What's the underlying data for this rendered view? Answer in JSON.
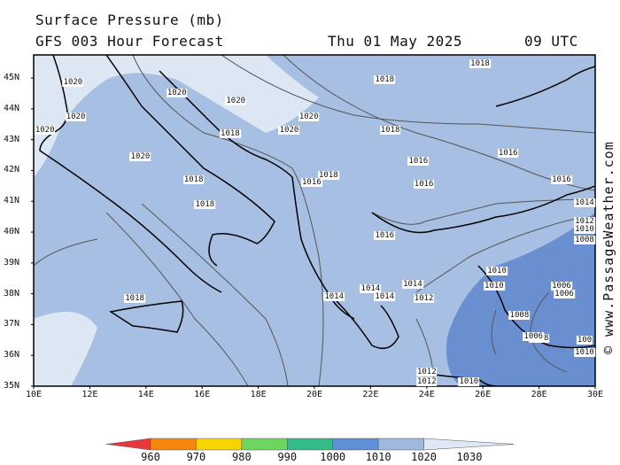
{
  "header": {
    "title": "Surface Pressure (mb)",
    "subtitle": "GFS 003 Hour Forecast",
    "date": "Thu 01 May 2025",
    "time": "09 UTC"
  },
  "credit": "© www.PassageWeather.com",
  "axes": {
    "lat_labels": [
      "45N",
      "44N",
      "43N",
      "42N",
      "41N",
      "40N",
      "39N",
      "38N",
      "37N",
      "36N",
      "35N"
    ],
    "lon_labels": [
      "10E",
      "12E",
      "14E",
      "16E",
      "18E",
      "20E",
      "22E",
      "24E",
      "26E",
      "28E",
      "30E"
    ]
  },
  "isobar_labels": [
    {
      "text": "1020",
      "lon": 11.4,
      "lat": 44.85
    },
    {
      "text": "1020",
      "lon": 15.1,
      "lat": 44.5
    },
    {
      "text": "1020",
      "lon": 17.2,
      "lat": 44.25
    },
    {
      "text": "1020",
      "lon": 11.5,
      "lat": 43.75
    },
    {
      "text": "1020",
      "lon": 19.8,
      "lat": 43.75
    },
    {
      "text": "1020",
      "lon": 10.4,
      "lat": 43.3
    },
    {
      "text": "1020",
      "lon": 19.1,
      "lat": 43.3
    },
    {
      "text": "1020",
      "lon": 13.8,
      "lat": 42.45
    },
    {
      "text": "1018",
      "lon": 22.5,
      "lat": 44.95
    },
    {
      "text": "1018",
      "lon": 17.0,
      "lat": 43.2
    },
    {
      "text": "1018",
      "lon": 22.7,
      "lat": 43.3
    },
    {
      "text": "1018",
      "lon": 15.7,
      "lat": 41.7
    },
    {
      "text": "1018",
      "lon": 16.1,
      "lat": 40.9
    },
    {
      "text": "1018",
      "lon": 20.5,
      "lat": 41.85
    },
    {
      "text": "1018",
      "lon": 13.6,
      "lat": 37.85
    },
    {
      "text": "1018",
      "lon": 25.9,
      "lat": 45.45
    },
    {
      "text": "1016",
      "lon": 23.7,
      "lat": 42.3
    },
    {
      "text": "1016",
      "lon": 26.9,
      "lat": 42.55
    },
    {
      "text": "1016",
      "lon": 23.9,
      "lat": 41.55
    },
    {
      "text": "1016",
      "lon": 19.9,
      "lat": 41.6
    },
    {
      "text": "1016",
      "lon": 22.5,
      "lat": 39.9
    },
    {
      "text": "1016",
      "lon": 28.8,
      "lat": 41.7
    },
    {
      "text": "1014",
      "lon": 29.9,
      "lat": 40.95
    },
    {
      "text": "1014",
      "lon": 23.5,
      "lat": 38.3
    },
    {
      "text": "1014",
      "lon": 22.0,
      "lat": 38.15
    },
    {
      "text": "1014",
      "lon": 20.7,
      "lat": 37.9
    },
    {
      "text": "1014",
      "lon": 22.5,
      "lat": 37.9
    },
    {
      "text": "1012",
      "lon": 29.9,
      "lat": 40.35
    },
    {
      "text": "1012",
      "lon": 23.9,
      "lat": 37.85
    },
    {
      "text": "1012",
      "lon": 24.0,
      "lat": 35.45
    },
    {
      "text": "1012",
      "lon": 24.0,
      "lat": 35.05
    },
    {
      "text": "1010",
      "lon": 29.9,
      "lat": 40.1
    },
    {
      "text": "1010",
      "lon": 26.5,
      "lat": 38.75
    },
    {
      "text": "1010",
      "lon": 26.4,
      "lat": 38.25
    },
    {
      "text": "1010",
      "lon": 29.9,
      "lat": 36.1
    },
    {
      "text": "1010",
      "lon": 25.5,
      "lat": 35.15
    },
    {
      "text": "1008",
      "lon": 30.0,
      "lat": 39.75
    },
    {
      "text": "1008",
      "lon": 27.3,
      "lat": 37.3
    },
    {
      "text": "1008",
      "lon": 28.0,
      "lat": 36.55
    },
    {
      "text": "1006",
      "lon": 28.8,
      "lat": 38.25
    },
    {
      "text": "1006",
      "lon": 28.9,
      "lat": 38.0
    },
    {
      "text": "1006",
      "lon": 27.8,
      "lat": 36.6
    },
    {
      "text": "100",
      "lon": 30.1,
      "lat": 36.5
    }
  ],
  "legend": {
    "labels": [
      "960",
      "970",
      "980",
      "990",
      "1000",
      "1010",
      "1020",
      "1030"
    ],
    "colors": [
      "#e8393a",
      "#f5860b",
      "#f7d600",
      "#6dd65f",
      "#33bb88",
      "#5f8fd4",
      "#9fb9e0",
      "#dfe8f5"
    ]
  },
  "map_colors": {
    "sea_1010": "#6a8fd0",
    "land_1010_1020": "#a2bddf",
    "band_1010_1020": "#a7bfe2",
    "above_1020": "#dde7f4",
    "coast": "#000000",
    "isobar": "#555555"
  }
}
